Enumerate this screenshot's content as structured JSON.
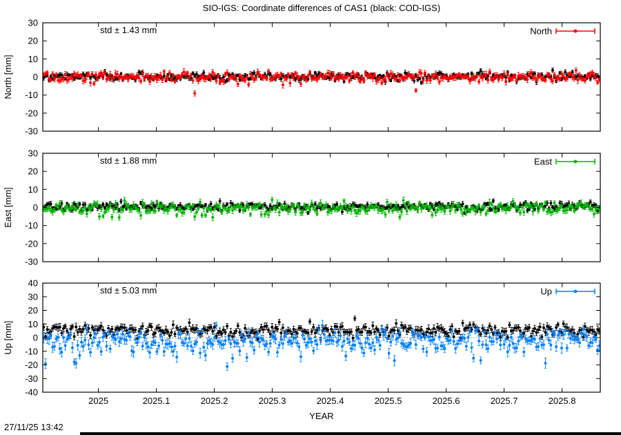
{
  "title": "SIO-IGS: Coordinate differences of CAS1 (black: COD-IGS)",
  "xlabel": "YEAR",
  "timestamp": "27/11/25 13:42",
  "chart_meta": {
    "x_range": [
      2024.904,
      2025.866
    ],
    "xticks": [
      2025,
      2025.1,
      2025.2,
      2025.3,
      2025.4,
      2025.5,
      2025.6,
      2025.7,
      2025.8
    ],
    "xtick_labels": [
      "2025",
      "2025.1",
      "2025.2",
      "2025.3",
      "2025.4",
      "2025.5",
      "2025.6",
      "2025.7",
      "2025.8"
    ],
    "n_points": 310,
    "seed": 1234,
    "grid": false,
    "legend_position": "top-right-inside",
    "black_series_name": "COD-IGS",
    "colored_series_name": "SIO-IGS"
  },
  "chart_data": [
    {
      "type": "scatter",
      "panel": "North",
      "ylabel": "North [mm]",
      "ylim": [
        -30,
        30
      ],
      "yticks": [
        30,
        20,
        10,
        0,
        -10,
        -20,
        -30
      ],
      "ytick_labels": [
        "30",
        "20",
        "10",
        "0",
        "-10",
        "-20",
        "-30"
      ],
      "std_label": "std ± 1.43 mm",
      "std_mm": 1.43,
      "legend_label": "North",
      "accent_color": "#ff0000",
      "zero_line": true,
      "series": [
        {
          "name": "COD-IGS",
          "color": "#000000",
          "mean": 0.3,
          "std": 1.1,
          "errbar_mm": 1.1
        },
        {
          "name": "SIO-IGS",
          "color": "#ff0000",
          "mean": -0.2,
          "std": 1.43,
          "errbar_mm": 1.4,
          "tail": {
            "prob": 0.03,
            "bias": 0.7,
            "scale": 12
          }
        }
      ]
    },
    {
      "type": "scatter",
      "panel": "East",
      "ylabel": "East [mm]",
      "ylim": [
        -30,
        30
      ],
      "yticks": [
        30,
        20,
        10,
        0,
        -10,
        -20,
        -30
      ],
      "ytick_labels": [
        "30",
        "20",
        "10",
        "0",
        "-10",
        "-20",
        "-30"
      ],
      "std_label": "std ± 1.88 mm",
      "std_mm": 1.88,
      "legend_label": "East",
      "accent_color": "#00b400",
      "zero_line": true,
      "series": [
        {
          "name": "COD-IGS",
          "color": "#000000",
          "mean": 0.4,
          "std": 1.1,
          "errbar_mm": 1.1
        },
        {
          "name": "SIO-IGS",
          "color": "#00b400",
          "mean": -0.4,
          "std": 1.88,
          "errbar_mm": 1.5,
          "tail": {
            "prob": 0.03,
            "bias": 0.6,
            "scale": 8
          }
        }
      ]
    },
    {
      "type": "scatter",
      "panel": "Up",
      "ylabel": "Up [mm]",
      "ylim": [
        -40,
        40
      ],
      "yticks": [
        40,
        30,
        20,
        10,
        0,
        -10,
        -20,
        -30,
        -40
      ],
      "ytick_labels": [
        "40",
        "30",
        "20",
        "10",
        "0",
        "-10",
        "-20",
        "-30",
        "-40"
      ],
      "std_label": "std ± 5.03 mm",
      "std_mm": 5.03,
      "legend_label": "Up",
      "accent_color": "#0080ff",
      "zero_line": true,
      "series": [
        {
          "name": "COD-IGS",
          "color": "#000000",
          "mean": 5.0,
          "std": 2.3,
          "errbar_mm": 2.2,
          "tail": {
            "prob": 0.02,
            "bias": 0.3,
            "scale": 8
          }
        },
        {
          "name": "SIO-IGS",
          "color": "#0080ff",
          "mean": -2.5,
          "std": 4.2,
          "errbar_mm": 3.0,
          "tail": {
            "prob": 0.15,
            "bias": 0.8,
            "scale": 18
          }
        }
      ]
    }
  ]
}
